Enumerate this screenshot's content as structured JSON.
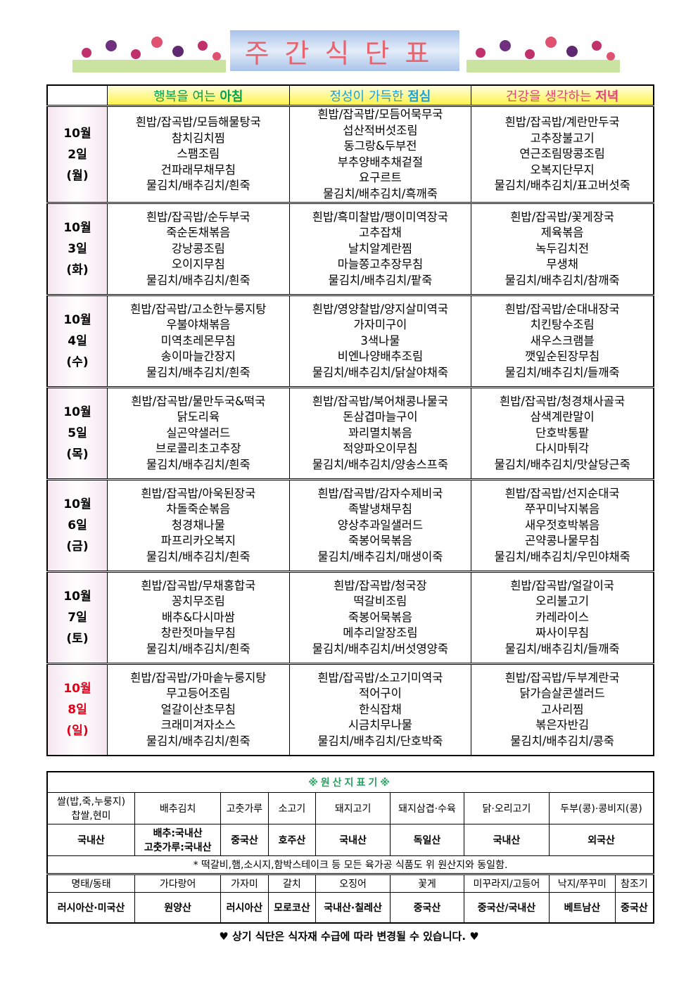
{
  "title": "주간식단표",
  "header": {
    "breakfast_pre": "행복을 여는 ",
    "breakfast": "아침",
    "lunch_pre": "정성이 가득한 ",
    "lunch": "점심",
    "dinner_pre": "건강을 생각하는 ",
    "dinner": "저녁"
  },
  "colors": {
    "breakfast": "#00a050",
    "lunch": "#1ea0e0",
    "dinner": "#e8407a",
    "sunday": "#e0001a"
  },
  "days": [
    {
      "month": "10월",
      "day": "2일",
      "dow": "(월)",
      "breakfast": [
        "흰밥/잡곡밥/모듬해물탕국",
        "참치김치찜",
        "스팸조림",
        "건파래무채무침",
        "물김치/배추김치/흰죽"
      ],
      "lunch": [
        "흰밥/잡곡밥/모듬어묵무국",
        "섭산적버섯조림",
        "동그랑&두부전",
        "부추양배추채겉절",
        "요구르트",
        "물김치/배추김치/흑깨죽"
      ],
      "dinner": [
        "흰밥/잡곡밥/계란만두국",
        "고추장불고기",
        "연근조림땅콩조림",
        "오복지단무지",
        "물김치/배추김치/표고버섯죽"
      ]
    },
    {
      "month": "10월",
      "day": "3일",
      "dow": "(화)",
      "breakfast": [
        "흰밥/잡곡밥/순두부국",
        "죽순돈채볶음",
        "강낭콩조림",
        "오이지무침",
        "물김치/배추김치/흰죽"
      ],
      "lunch": [
        "흰밥/흑미찰밥/팽이미역장국",
        "고추잡채",
        "날치알계란찜",
        "마늘쫑고추장무침",
        "물김치/배추김치/팥죽"
      ],
      "dinner": [
        "흰밥/잡곡밥/꽃게장국",
        "제육볶음",
        "녹두김치전",
        "무생채",
        "물김치/배추김치/참깨죽"
      ]
    },
    {
      "month": "10월",
      "day": "4일",
      "dow": "(수)",
      "breakfast": [
        "흰밥/잡곡밥/고소한누룽지탕",
        "우불야채볶음",
        "미역초레몬무침",
        "송이마늘간장지",
        "물김치/배추김치/흰죽"
      ],
      "lunch": [
        "흰밥/영양찰밥/양지살미역국",
        "가자미구이",
        "3색나물",
        "비엔나양배추조림",
        "물김치/배추김치/닭살야채죽"
      ],
      "dinner": [
        "흰밥/잡곡밥/순대내장국",
        "치킨탕수조림",
        "새우스크램블",
        "깻잎순된장무침",
        "물김치/배추김치/들깨죽"
      ]
    },
    {
      "month": "10월",
      "day": "5일",
      "dow": "(목)",
      "breakfast": [
        "흰밥/잡곡밥/물만두국&떡국",
        "닭도리육",
        "실곤약샐러드",
        "브로콜리초고추장",
        "물김치/배추김치/흰죽"
      ],
      "lunch": [
        "흰밥/잡곡밥/북어채콩나물국",
        "돈삼겹마늘구이",
        "꽈리멸치볶음",
        "적양파오이무침",
        "물김치/배추김치/양송스프죽"
      ],
      "dinner": [
        "흰밥/잡곡밥/청경채사골국",
        "삼색계란말이",
        "단호박통팥",
        "다시마튀각",
        "물김치/배추김치/맛살당근죽"
      ]
    },
    {
      "month": "10월",
      "day": "6일",
      "dow": "(금)",
      "breakfast": [
        "흰밥/잡곡밥/아욱된장국",
        "차돌죽순볶음",
        "청경채나물",
        "파프리카오복지",
        "물김치/배추김치/흰죽"
      ],
      "lunch": [
        "흰밥/잡곡밥/감자수제비국",
        "족발냉채무침",
        "양상추과일샐러드",
        "죽봉어묵볶음",
        "물김치/배추김치/매생이죽"
      ],
      "dinner": [
        "흰밥/잡곡밥/선지순대국",
        "쭈꾸미낙지볶음",
        "새우젓호박볶음",
        "곤약콩나물무침",
        "물김치/배추김치/우민야채죽"
      ]
    },
    {
      "month": "10월",
      "day": "7일",
      "dow": "(토)",
      "breakfast": [
        "흰밥/잡곡밥/무채홍합국",
        "꽁치무조림",
        "배추&다시마쌈",
        "창란젓마늘무침",
        "물김치/배추김치/흰죽"
      ],
      "lunch": [
        "흰밥/잡곡밥/청국장",
        "떡갈비조림",
        "죽봉어묵볶음",
        "메추리알장조림",
        "물김치/배추김치/버섯영양죽"
      ],
      "dinner": [
        "흰밥/잡곡밥/얼갈이국",
        "오리불고기",
        "카레라이스",
        "짜사이무침",
        "물김치/배추김치/들깨죽"
      ]
    },
    {
      "month": "10월",
      "day": "8일",
      "dow": "(일)",
      "breakfast": [
        "흰밥/잡곡밥/가마솥누룽지탕",
        "무고등어조림",
        "얼갈이산초무침",
        "크래미겨자소스",
        "물김치/배추김치/흰죽"
      ],
      "lunch": [
        "흰밥/잡곡밥/소고기미역국",
        "적어구이",
        "한식잡채",
        "시금치무나물",
        "물김치/배추김치/단호박죽"
      ],
      "dinner": [
        "흰밥/잡곡밥/두부계란국",
        "닭가슴살콘샐러드",
        "고사리찜",
        "볶은자반김",
        "물김치/배추김치/콩죽"
      ]
    }
  ],
  "origin": {
    "title": "※원산지표기※",
    "row1_items": [
      "쌀(밥,죽,누룽지)\n찹쌀,현미",
      "배추김치",
      "고춧가루",
      "소고기",
      "돼지고기",
      "돼지삼겹·수육",
      "닭·오리고기",
      "두부(콩)·콩비지(콩)"
    ],
    "row1_origins": [
      "국내산",
      "배추:국내산\n고춧가루:국내산",
      "중국산",
      "호주산",
      "국내산",
      "독일산",
      "국내산",
      "외국산"
    ],
    "note": "* 떡갈비,햄,소시지,함박스테이크 등 모든 육가공 식품도 위 원산지와 동일함.",
    "row2_items": [
      "명태/동태",
      "가다랑어",
      "가자미",
      "갈치",
      "오징어",
      "꽃게",
      "미꾸라지/고등어",
      "낙지/쭈꾸미",
      "참조기"
    ],
    "row2_origins": [
      "러시아산·미국산",
      "원양산",
      "러시아산",
      "모로코산",
      "국내산·칠레산",
      "중국산",
      "중국산/국내산",
      "베트남산",
      "중국산"
    ]
  },
  "footer": "♥ 상기 식단은 식자재 수급에 따라 변경될 수 있습니다. ♥"
}
